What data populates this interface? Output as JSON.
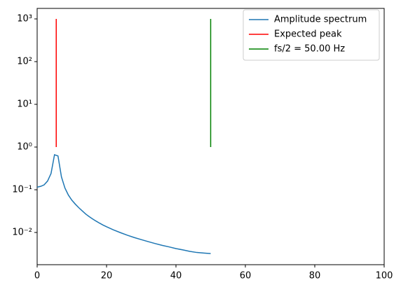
{
  "chart_data": {
    "type": "line",
    "x": [
      0,
      1,
      2,
      3,
      4,
      5,
      6,
      7,
      8,
      9,
      10,
      11,
      12,
      13,
      14,
      15,
      16,
      17,
      18,
      19,
      20,
      22,
      24,
      26,
      28,
      30,
      32,
      34,
      36,
      38,
      40,
      42,
      44,
      46,
      48,
      50
    ],
    "series": [
      {
        "name": "Amplitude spectrum",
        "color": "#1f77b4",
        "values": [
          0.115,
          0.12,
          0.13,
          0.16,
          0.24,
          0.66,
          0.62,
          0.2,
          0.11,
          0.075,
          0.057,
          0.046,
          0.038,
          0.032,
          0.027,
          0.0235,
          0.0207,
          0.0184,
          0.0165,
          0.0149,
          0.0136,
          0.0115,
          0.0099,
          0.0086,
          0.0076,
          0.0068,
          0.0061,
          0.0055,
          0.005,
          0.0046,
          0.0042,
          0.0039,
          0.0036,
          0.0034,
          0.0033,
          0.0032
        ]
      },
      {
        "name": "Expected peak",
        "color": "#ff0000",
        "x": [
          5.5,
          5.5
        ],
        "values": [
          1,
          1000
        ]
      },
      {
        "name": "fs/2 = 50.00 Hz",
        "color": "#008000",
        "x": [
          50,
          50
        ],
        "values": [
          1,
          1000
        ]
      }
    ],
    "xlim": [
      0,
      100
    ],
    "xticks": [
      0,
      20,
      40,
      60,
      80,
      100
    ],
    "ylim": [
      0.00176,
      1762
    ],
    "log_y": true,
    "yticks": [
      {
        "value": 0.01,
        "label": "10⁻²"
      },
      {
        "value": 0.1,
        "label": "10⁻¹"
      },
      {
        "value": 1,
        "label": "10⁰"
      },
      {
        "value": 10,
        "label": "10¹"
      },
      {
        "value": 100,
        "label": "10²"
      },
      {
        "value": 1000,
        "label": "10³"
      }
    ],
    "legend": "upper right"
  }
}
